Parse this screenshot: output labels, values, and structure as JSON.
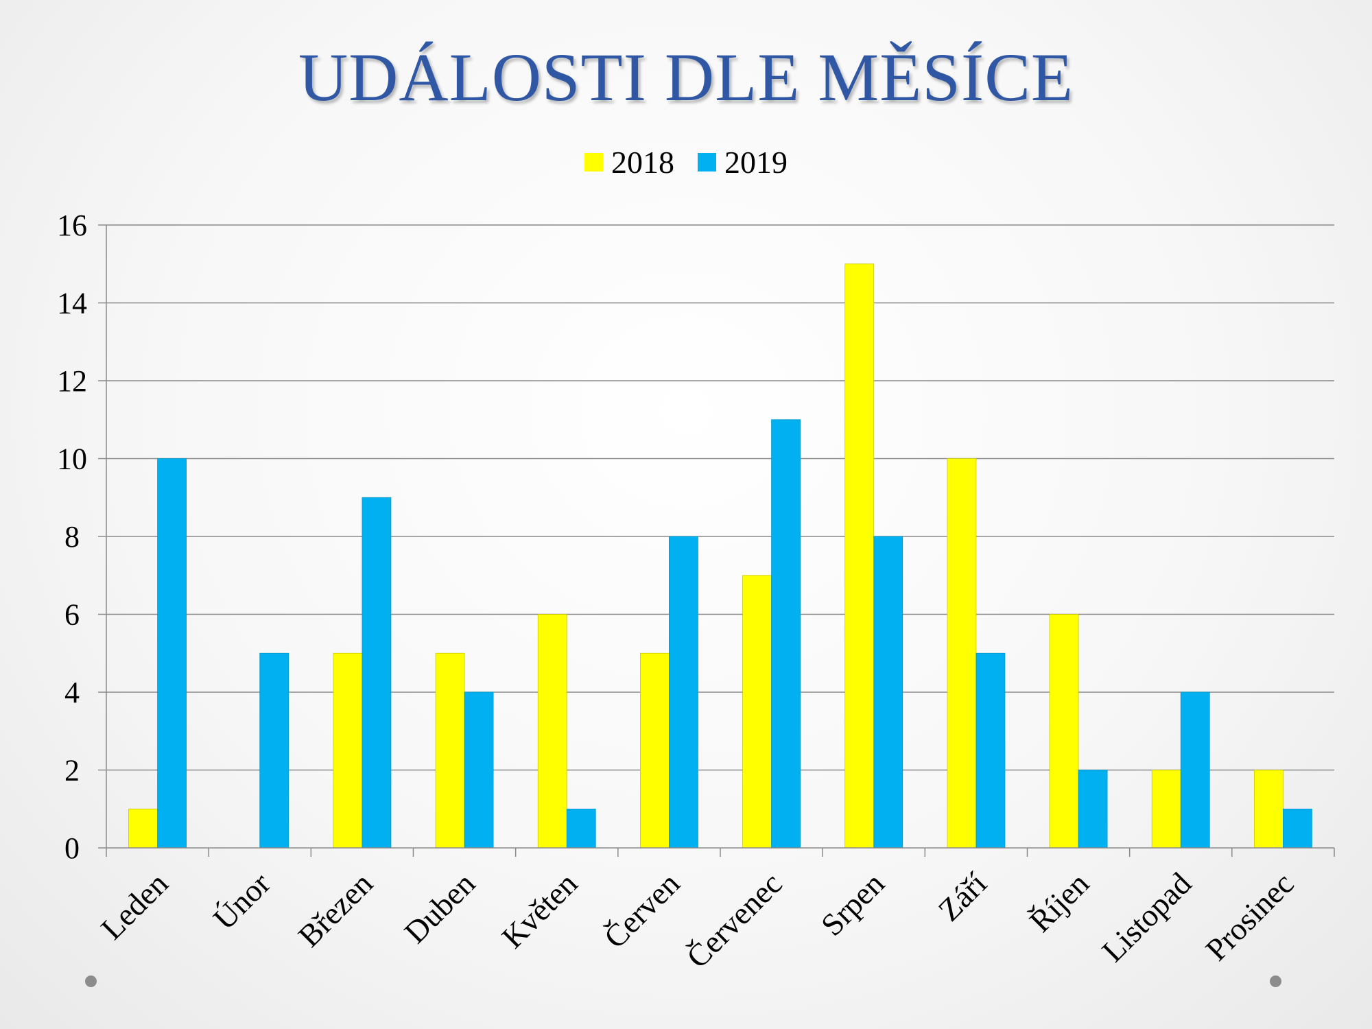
{
  "title": "UDÁLOSTI DLE MĚSÍCE",
  "colors": {
    "series_2018": "#ffff00",
    "series_2019": "#00b0f0",
    "title": "#2f57a4",
    "grid": "#8a8a8a"
  },
  "chart_data": {
    "type": "bar",
    "categories": [
      "Leden",
      "Únor",
      "Březen",
      "Duben",
      "Květen",
      "Červen",
      "Červenec",
      "Srpen",
      "Září",
      "Říjen",
      "Listopad",
      "Prosinec"
    ],
    "series": [
      {
        "name": "2018",
        "values": [
          1,
          0,
          5,
          5,
          6,
          5,
          7,
          15,
          10,
          6,
          2,
          2
        ]
      },
      {
        "name": "2019",
        "values": [
          10,
          5,
          9,
          4,
          1,
          8,
          11,
          8,
          5,
          2,
          4,
          1
        ]
      }
    ],
    "yticks": [
      "0",
      "2",
      "4",
      "6",
      "8",
      "10",
      "12",
      "14",
      "16"
    ],
    "ylim": [
      0,
      16
    ],
    "grid": true,
    "legend_position": "top"
  }
}
